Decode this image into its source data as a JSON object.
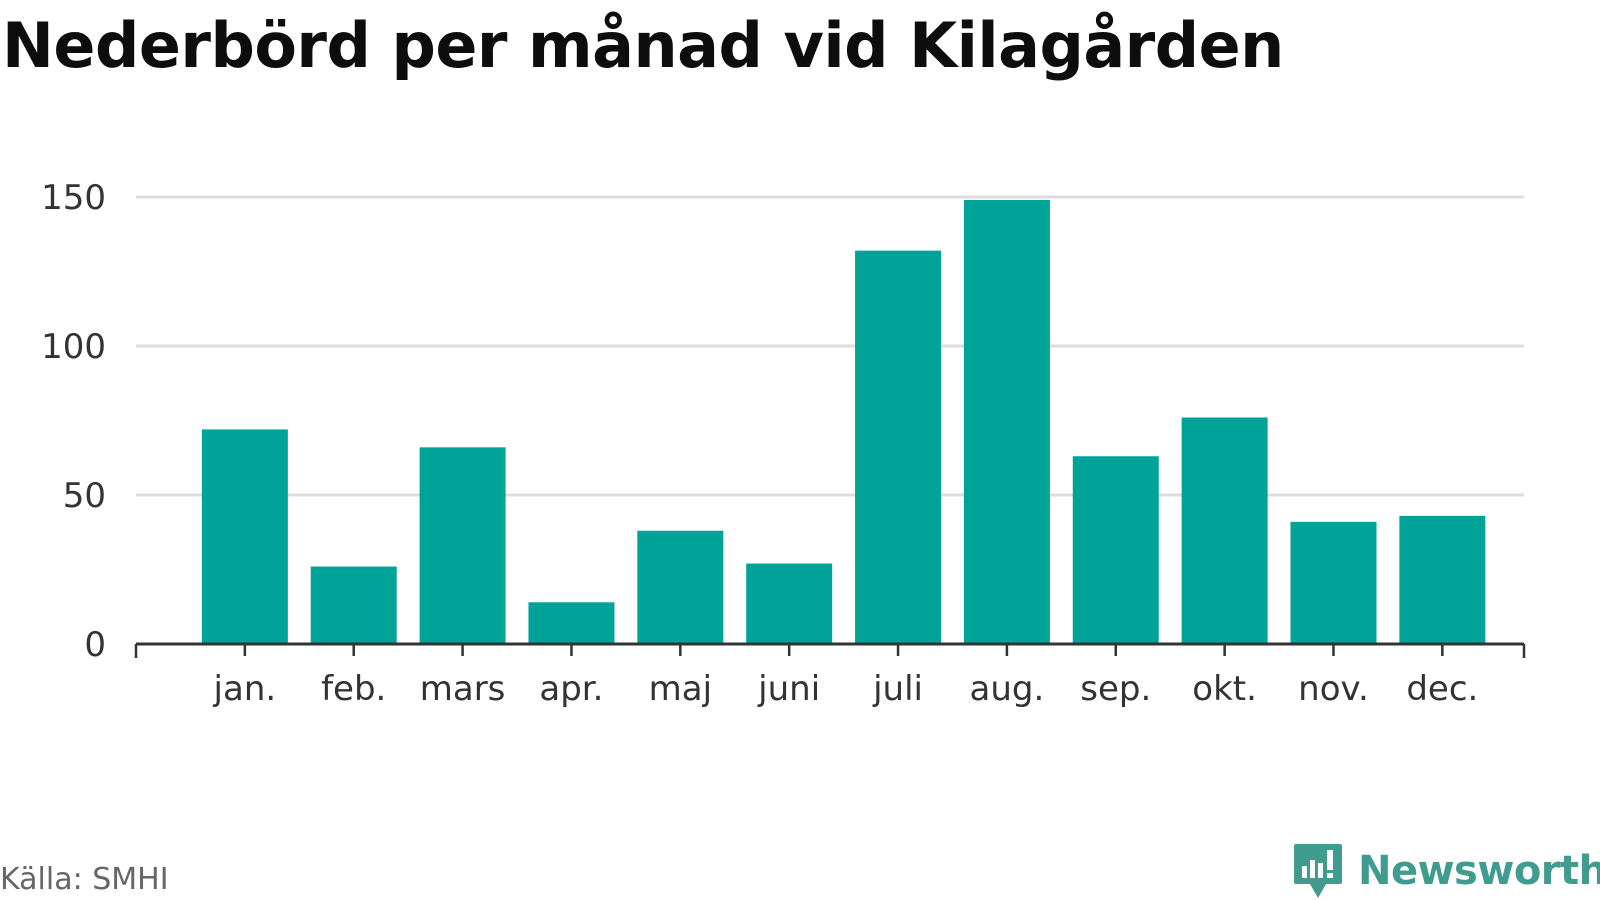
{
  "title": "Nederbörd per månad vid Kilagården",
  "source": "Källa: SMHI",
  "brand": {
    "name": "Newsworthy",
    "icon": "newsworthy-logo-icon",
    "color": "#3f9c8f"
  },
  "colors": {
    "bar": "#00a398",
    "grid": "#dddddd",
    "axis": "#333333",
    "text": "#333333"
  },
  "chart_data": {
    "type": "bar",
    "title": "Nederbörd per månad vid Kilagården",
    "categories": [
      "jan.",
      "feb.",
      "mars",
      "apr.",
      "maj",
      "juni",
      "juli",
      "aug.",
      "sep.",
      "okt.",
      "nov.",
      "dec."
    ],
    "values": [
      72,
      26,
      66,
      14,
      38,
      27,
      132,
      149,
      63,
      76,
      41,
      43
    ],
    "yticks": [
      0,
      50,
      100,
      150
    ],
    "ylim": [
      0,
      150
    ],
    "grid": true,
    "xlabel": "",
    "ylabel": ""
  }
}
